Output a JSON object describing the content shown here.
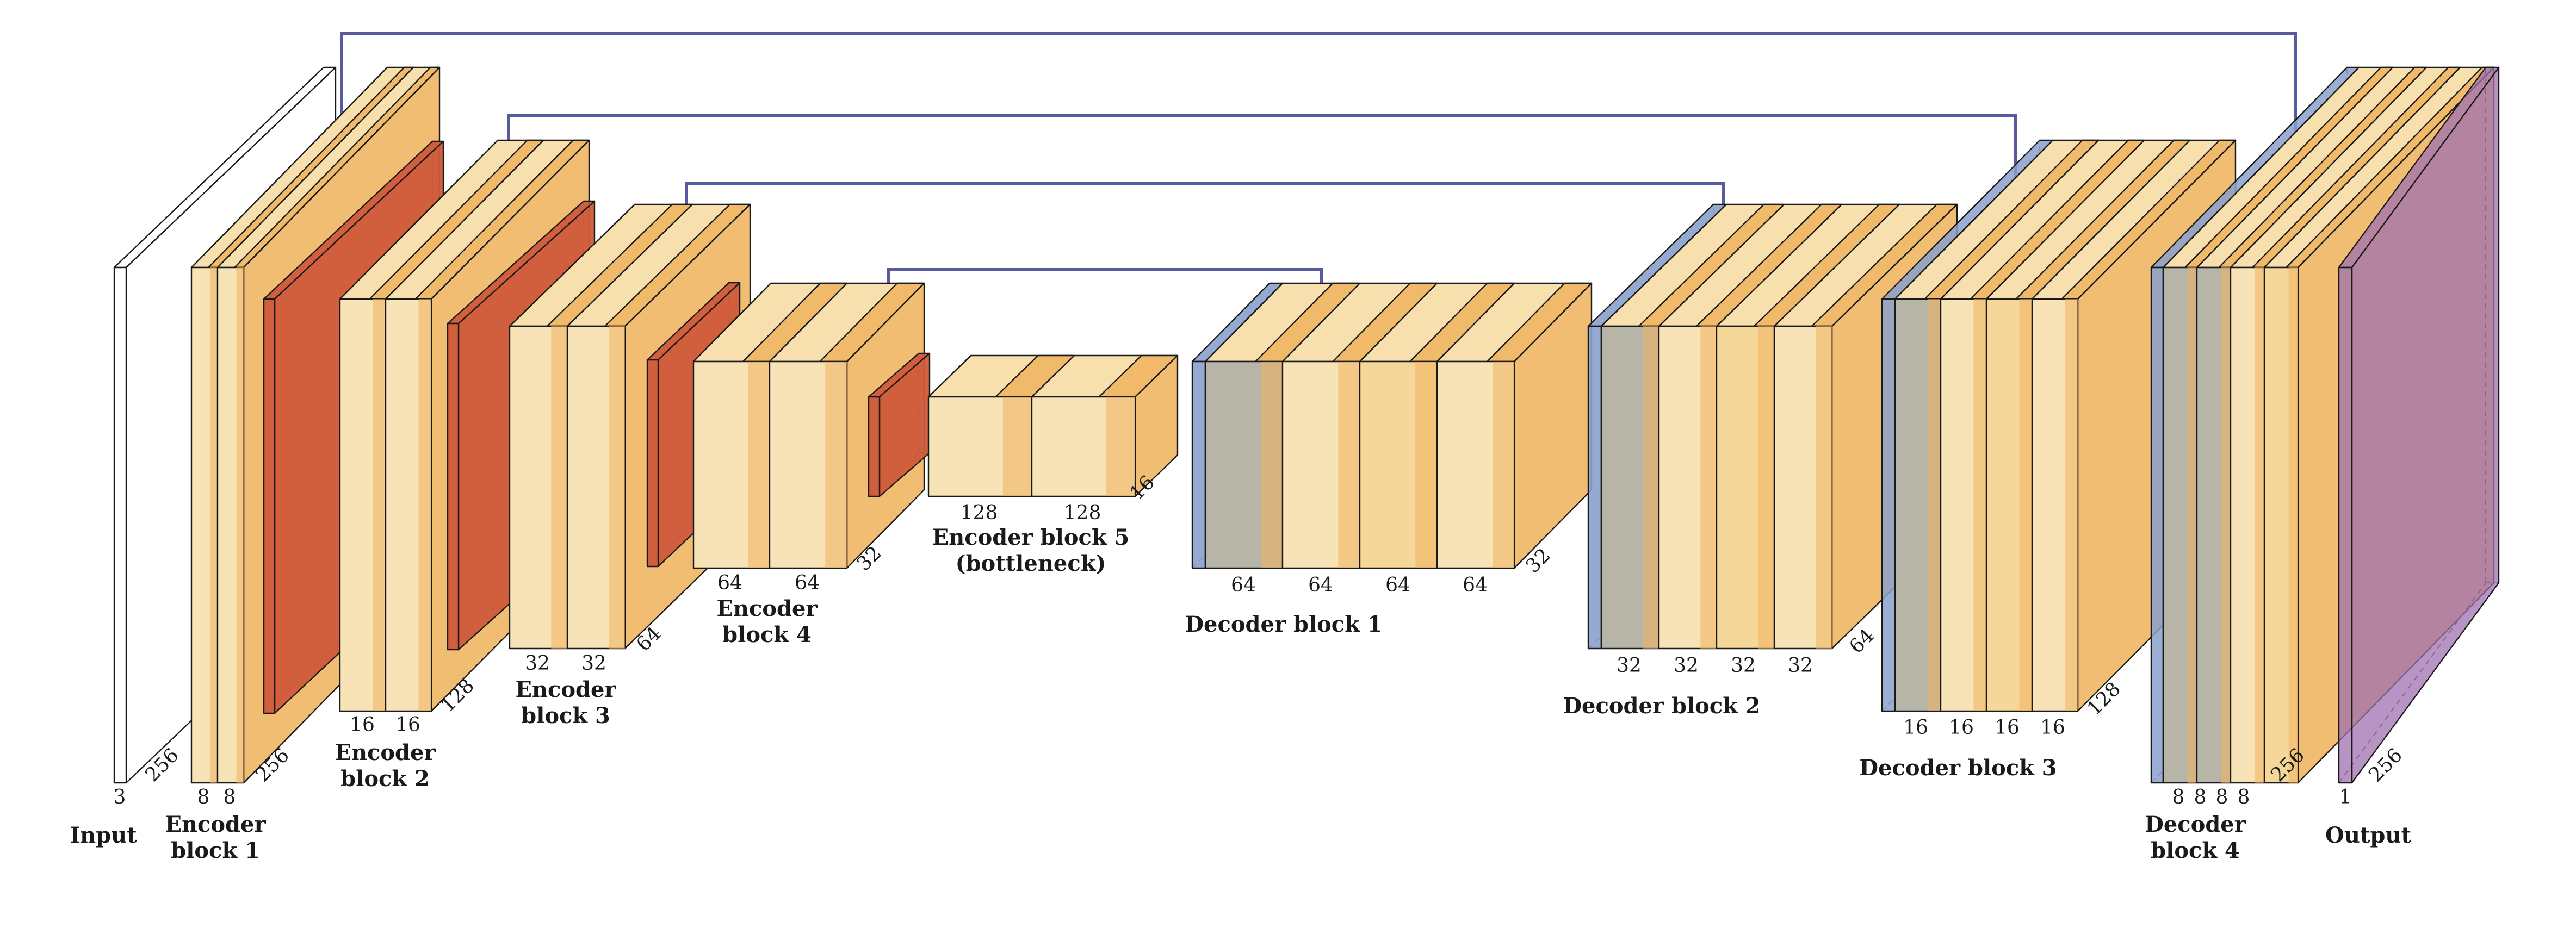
{
  "colors": {
    "conv": "#f7e3b6",
    "conv_band": "#f0b25e",
    "pool": "#cf5a3a",
    "upconv": "#8aa0cc",
    "concat": "#b7b4a8",
    "output": "#a070b0",
    "input": "#ffffff",
    "skip": "#5a5aa0"
  },
  "labels": {
    "input": "Input",
    "enc1": [
      "Encoder",
      "block 1"
    ],
    "enc2": [
      "Encoder",
      "block 2"
    ],
    "enc3": [
      "Encoder",
      "block 3"
    ],
    "enc4": [
      "Encoder",
      "block 4"
    ],
    "enc5": [
      "Encoder block 5",
      "(bottleneck)"
    ],
    "dec1": [
      "Decoder block 1"
    ],
    "dec2": [
      "Decoder block 2"
    ],
    "dec3": [
      "Decoder block 3"
    ],
    "dec4": [
      "Decoder",
      "block 4"
    ],
    "output": "Output"
  },
  "dims": {
    "input": {
      "channels": [
        "3"
      ],
      "size": "256"
    },
    "enc1": {
      "channels": [
        "8",
        "8"
      ],
      "size": "256"
    },
    "enc2": {
      "channels": [
        "16",
        "16"
      ],
      "size": "128"
    },
    "enc3": {
      "channels": [
        "32",
        "32"
      ],
      "size": "64"
    },
    "enc4": {
      "channels": [
        "64",
        "64"
      ],
      "size": "32"
    },
    "enc5": {
      "channels": [
        "128",
        "128"
      ],
      "size": "16"
    },
    "dec1": {
      "channels": [
        "64",
        "64",
        "64",
        "64"
      ],
      "size": "32"
    },
    "dec2": {
      "channels": [
        "32",
        "32",
        "32",
        "32"
      ],
      "size": "64"
    },
    "dec3": {
      "channels": [
        "16",
        "16",
        "16",
        "16"
      ],
      "size": "128"
    },
    "dec4": {
      "channels": [
        "8",
        "8",
        "8",
        "8"
      ],
      "size": "256"
    },
    "output": {
      "channels": [
        "1"
      ],
      "size": "256"
    }
  }
}
